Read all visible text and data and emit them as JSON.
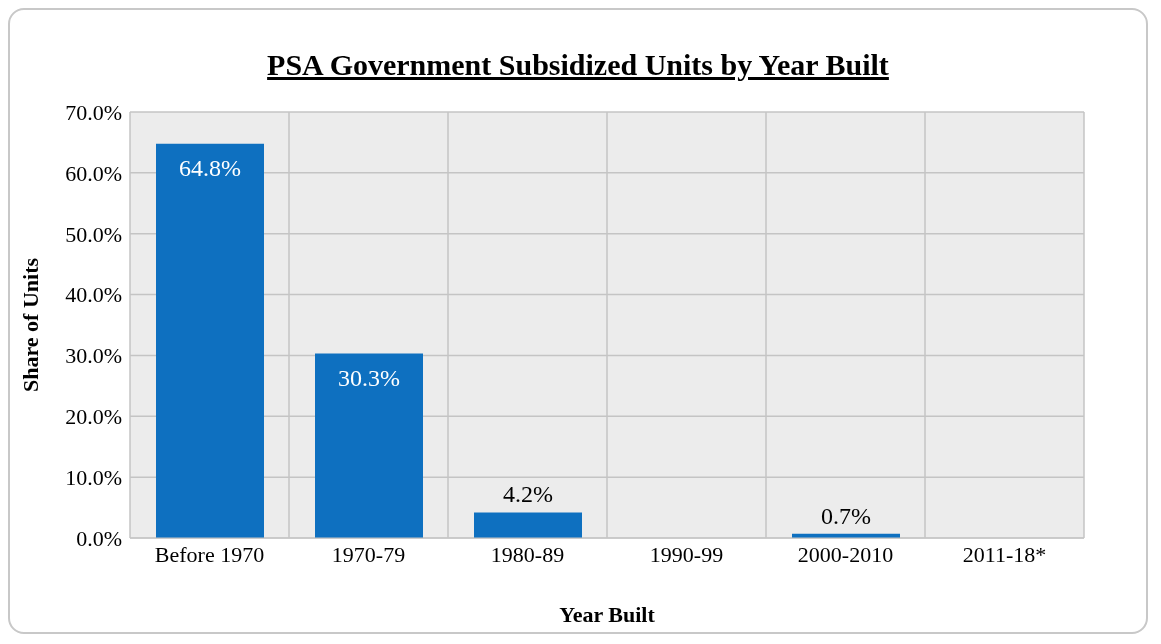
{
  "chart_data": {
    "type": "bar",
    "title": "PSA Government Subsidized Units by Year Built",
    "xlabel": "Year Built",
    "ylabel": "Share of Units",
    "categories": [
      "Before 1970",
      "1970-79",
      "1980-89",
      "1990-99",
      "2000-2010",
      "2011-18*"
    ],
    "values": [
      64.8,
      30.3,
      4.2,
      0,
      0.7,
      0
    ],
    "color": "#0e70c0",
    "value_labels": [
      "64.8%",
      "30.3%",
      "4.2%",
      null,
      "0.7%",
      null
    ],
    "ylim": [
      0,
      70
    ],
    "yticks": [
      {
        "value": 0,
        "label": "0.0%"
      },
      {
        "value": 10,
        "label": "10.0%"
      },
      {
        "value": 20,
        "label": "20.0%"
      },
      {
        "value": 30,
        "label": "30.0%"
      },
      {
        "value": 40,
        "label": "40.0%"
      },
      {
        "value": 50,
        "label": "50.0%"
      },
      {
        "value": 60,
        "label": "60.0%"
      },
      {
        "value": 70,
        "label": "70.0%"
      }
    ],
    "grid": true
  }
}
